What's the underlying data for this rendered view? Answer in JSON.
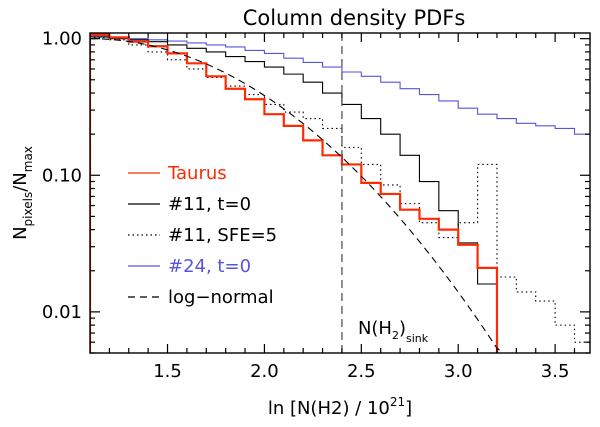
{
  "chart_data": {
    "type": "line",
    "title": "Column density PDFs",
    "xlabel": "ln [N(H2) / 10",
    "xlabel_sup": "21",
    "xlabel_end": "]",
    "ylabel_main": "N",
    "ylabel_sub1": "pixels",
    "ylabel_slash": "/N",
    "ylabel_sub2": "max",
    "x_scale": "linear",
    "y_scale": "log",
    "xlim": [
      1.1,
      3.68
    ],
    "ylim": [
      0.005,
      1.1
    ],
    "x_ticks": [
      {
        "v": 1.5,
        "label": "1.5"
      },
      {
        "v": 2.0,
        "label": "2.0"
      },
      {
        "v": 2.5,
        "label": "2.5"
      },
      {
        "v": 3.0,
        "label": "3.0"
      },
      {
        "v": 3.5,
        "label": "3.5"
      }
    ],
    "y_ticks": [
      {
        "v": 1.0,
        "label": "1.00"
      },
      {
        "v": 0.1,
        "label": "0.10"
      },
      {
        "v": 0.01,
        "label": "0.01"
      }
    ],
    "vline": {
      "x": 2.4,
      "label_main": "N(H",
      "label_sub": "2",
      "label_end": ")",
      "label_sub2": "sink"
    },
    "series": [
      {
        "name": "#24, t=0",
        "color": "#5555dd",
        "style": "step",
        "edges": [
          1.1,
          1.2,
          1.3,
          1.4,
          1.5,
          1.6,
          1.7,
          1.8,
          1.9,
          2.0,
          2.1,
          2.2,
          2.3,
          2.4,
          2.5,
          2.6,
          2.7,
          2.8,
          2.9,
          3.0,
          3.1,
          3.2,
          3.3,
          3.4,
          3.5,
          3.6,
          3.68
        ],
        "values": [
          1.05,
          1.03,
          1.0,
          0.98,
          0.96,
          0.93,
          0.9,
          0.87,
          0.82,
          0.78,
          0.72,
          0.67,
          0.62,
          0.57,
          0.53,
          0.48,
          0.43,
          0.39,
          0.35,
          0.31,
          0.28,
          0.26,
          0.24,
          0.23,
          0.22,
          0.2
        ]
      },
      {
        "name": "#11, t=0",
        "color": "#000000",
        "style": "step",
        "edges": [
          1.1,
          1.2,
          1.3,
          1.4,
          1.5,
          1.6,
          1.7,
          1.8,
          1.9,
          2.0,
          2.1,
          2.2,
          2.3,
          2.4,
          2.5,
          2.6,
          2.7,
          2.8,
          2.9,
          3.0,
          3.1,
          3.2
        ],
        "values": [
          1.03,
          1.0,
          0.98,
          0.95,
          0.9,
          0.85,
          0.8,
          0.74,
          0.68,
          0.62,
          0.55,
          0.48,
          0.4,
          0.33,
          0.26,
          0.2,
          0.14,
          0.09,
          0.055,
          0.032,
          0.016
        ]
      },
      {
        "name": "#11, SFE=5",
        "color": "#000000",
        "style": "step-dotted",
        "edges": [
          1.1,
          1.2,
          1.3,
          1.4,
          1.5,
          1.6,
          1.7,
          1.8,
          1.9,
          2.0,
          2.1,
          2.2,
          2.3,
          2.4,
          2.5,
          2.6,
          2.7,
          2.8,
          2.9,
          3.0,
          3.1,
          3.2,
          3.3,
          3.4,
          3.5,
          3.6,
          3.68
        ],
        "values": [
          1.02,
          0.98,
          0.9,
          0.8,
          0.7,
          0.6,
          0.52,
          0.45,
          0.39,
          0.33,
          0.29,
          0.26,
          0.22,
          0.16,
          0.12,
          0.085,
          0.062,
          0.045,
          0.035,
          0.045,
          0.12,
          0.018,
          0.014,
          0.012,
          0.008,
          0.006
        ]
      },
      {
        "name": "Taurus",
        "color": "#ff2a00",
        "style": "step",
        "edges": [
          1.1,
          1.2,
          1.3,
          1.4,
          1.5,
          1.6,
          1.7,
          1.8,
          1.9,
          2.0,
          2.1,
          2.2,
          2.3,
          2.4,
          2.5,
          2.6,
          2.7,
          2.8,
          2.9,
          3.0,
          3.1,
          3.2
        ],
        "values": [
          1.07,
          1.02,
          0.95,
          0.88,
          0.78,
          0.66,
          0.53,
          0.43,
          0.36,
          0.28,
          0.23,
          0.18,
          0.14,
          0.12,
          0.088,
          0.073,
          0.056,
          0.048,
          0.04,
          0.031,
          0.021
        ]
      },
      {
        "name": "log-normal",
        "color": "#000000",
        "style": "dashed",
        "mu": 1.1,
        "sigma": 0.65,
        "x_range": [
          1.1,
          3.68
        ]
      }
    ],
    "legend": {
      "position": "left",
      "entries": [
        {
          "label": "Taurus",
          "color": "#ff2a00",
          "style": "solid"
        },
        {
          "label": "#11, t=0",
          "color": "#000000",
          "style": "solid"
        },
        {
          "label": "#11, SFE=5",
          "color": "#000000",
          "style": "dotted"
        },
        {
          "label": "#24, t=0",
          "color": "#5555dd",
          "style": "solid"
        },
        {
          "label": "log−normal",
          "color": "#000000",
          "style": "dashed"
        }
      ]
    }
  }
}
